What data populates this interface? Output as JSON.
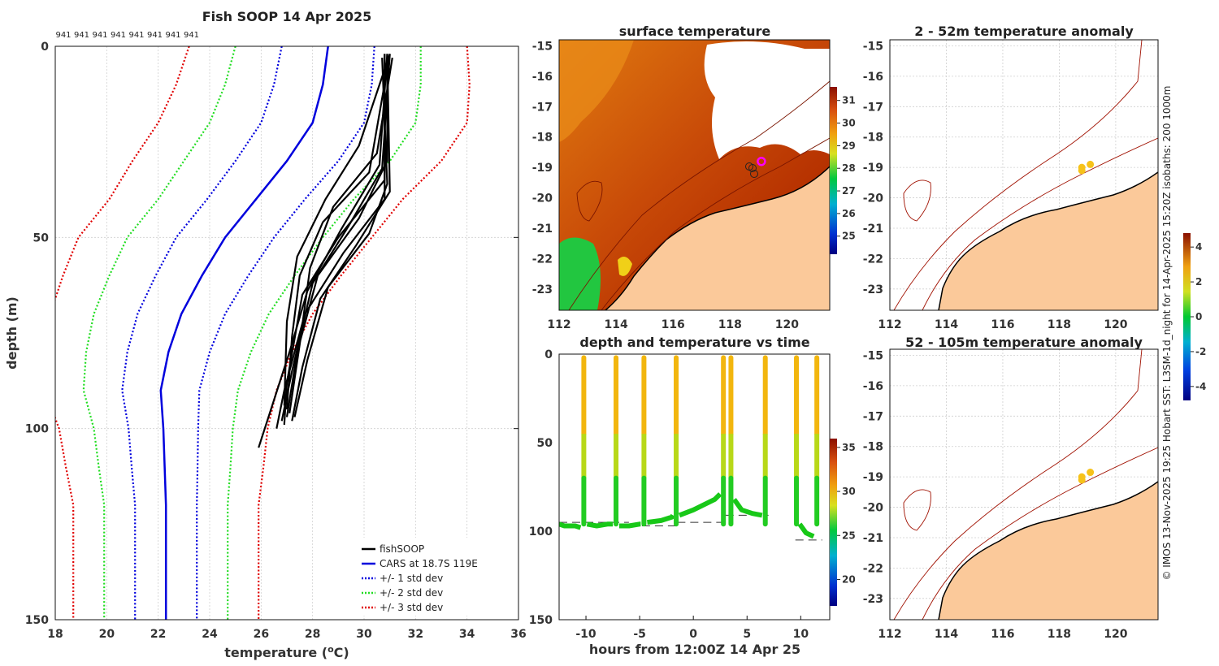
{
  "colors": {
    "red": "#e00000",
    "green": "#22dd22",
    "blue": "#0000dd",
    "black": "#000000",
    "land": "#fbc99a",
    "sst_hot": "#b82a00",
    "sst_mid": "#e8860e",
    "orange_pt": "#f6c21a",
    "magenta": "#ff00ff"
  },
  "side_credit": "© IMOS 13-Nov-2025 19:25 Hobart SST: L3SM-1d_night for 14-Apr-2025 15:20Z isobaths: 200  1000m",
  "chart_data": [
    {
      "id": "profile",
      "type": "line",
      "title": "Fish SOOP 14 Apr 2025",
      "xlabel": "temperature (",
      "xlabel_sup": "o",
      "xlabel_tail": "C)",
      "ylabel": "depth (m)",
      "xlim": [
        18,
        36
      ],
      "ylim": [
        0,
        150
      ],
      "xticks": [
        "18",
        "20",
        "22",
        "24",
        "26",
        "28",
        "30",
        "32",
        "34",
        "36"
      ],
      "yticks": [
        "0",
        "50",
        "100",
        "150"
      ],
      "top_labels": [
        "941",
        "941",
        "941",
        "941",
        "941",
        "941",
        "941",
        "941"
      ],
      "legend": [
        "fishSOOP",
        "CARS at 18.7S 119E",
        "+/- 1 std dev",
        "+/- 2 std dev",
        "+/- 3 std dev"
      ],
      "depths": [
        0,
        10,
        20,
        30,
        40,
        50,
        60,
        70,
        80,
        90,
        100,
        110,
        120,
        130,
        150
      ],
      "cars_mean": [
        28.6,
        28.4,
        28.0,
        27.0,
        25.8,
        24.6,
        23.7,
        22.9,
        22.4,
        22.1,
        22.2,
        22.25,
        22.3,
        22.3,
        22.3
      ],
      "std_dev": [
        1.8,
        1.9,
        2.0,
        2.0,
        1.9,
        1.9,
        1.8,
        1.7,
        1.6,
        1.5,
        1.35,
        1.28,
        1.2,
        1.2,
        1.2
      ],
      "profiles": [
        {
          "depths": [
            2,
            30,
            45,
            60,
            80,
            97
          ],
          "temps": [
            30.9,
            30.9,
            29.8,
            28.2,
            27.4,
            27.0
          ]
        },
        {
          "depths": [
            2,
            32,
            47,
            62,
            85,
            98
          ],
          "temps": [
            31.0,
            30.7,
            29.4,
            28.0,
            27.2,
            26.8
          ]
        },
        {
          "depths": [
            2,
            35,
            50,
            65,
            88,
            99
          ],
          "temps": [
            30.8,
            30.8,
            29.0,
            27.6,
            27.0,
            26.9
          ]
        },
        {
          "depths": [
            3,
            28,
            42,
            58,
            78,
            96
          ],
          "temps": [
            31.1,
            30.5,
            28.8,
            27.9,
            27.5,
            27.1
          ]
        },
        {
          "depths": [
            2,
            38,
            52,
            66,
            84,
            98
          ],
          "temps": [
            30.9,
            31.0,
            29.7,
            28.3,
            27.6,
            27.2
          ]
        },
        {
          "depths": [
            2,
            33,
            46,
            60,
            76,
            95
          ],
          "temps": [
            31.0,
            30.2,
            28.4,
            27.5,
            27.2,
            27.0
          ]
        },
        {
          "depths": [
            3,
            36,
            49,
            63,
            82,
            97
          ],
          "temps": [
            30.7,
            30.9,
            30.2,
            28.6,
            27.8,
            27.3
          ]
        },
        {
          "depths": [
            2,
            40,
            54,
            70,
            90,
            100
          ],
          "temps": [
            30.8,
            30.8,
            29.2,
            27.7,
            26.9,
            26.6
          ]
        },
        {
          "depths": [
            2,
            26,
            40,
            55,
            72,
            94
          ],
          "temps": [
            31.0,
            29.8,
            28.5,
            27.4,
            27.0,
            26.9
          ]
        },
        {
          "depths": [
            2,
            31,
            48,
            64,
            80,
            105
          ],
          "temps": [
            30.9,
            30.6,
            29.1,
            27.8,
            27.1,
            25.9
          ]
        }
      ]
    },
    {
      "id": "sst_map",
      "type": "heatmap",
      "title": "surface temperature",
      "xlim": [
        112,
        121.5
      ],
      "ylim": [
        -23.7,
        -14.8
      ],
      "xticks": [
        "112",
        "114",
        "116",
        "118",
        "120"
      ],
      "yticks": [
        "-15",
        "-16",
        "-17",
        "-18",
        "-19",
        "-20",
        "-21",
        "-22",
        "-23"
      ],
      "colorbar_ticks": [
        "31",
        "30",
        "29",
        "28",
        "27",
        "26",
        "25"
      ],
      "colorbar_range": [
        24.2,
        31.6
      ],
      "track_point": [
        119.1,
        -18.8
      ]
    },
    {
      "id": "depth_time",
      "type": "scatter",
      "title": "depth and temperature vs time",
      "xlabel": "hours from 12:00Z 14 Apr 25",
      "xlim": [
        -12.5,
        12.7
      ],
      "ylim": [
        0,
        150
      ],
      "xticks": [
        "-10",
        "-5",
        "0",
        "5",
        "10"
      ],
      "yticks": [
        "0",
        "50",
        "100",
        "150"
      ],
      "colorbar_ticks": [
        "35",
        "30",
        "25",
        "20"
      ],
      "colorbar_range": [
        17,
        36
      ],
      "casts": [
        -10.2,
        -7.2,
        -4.6,
        -1.6,
        2.8,
        3.5,
        6.7,
        9.6,
        11.5
      ],
      "segments": [
        {
          "t": [
            -12.5,
            -12,
            -11,
            -10.5
          ],
          "d": [
            96,
            97,
            97,
            98
          ]
        },
        {
          "t": [
            -9.9,
            -9,
            -8,
            -7.5
          ],
          "d": [
            96,
            97,
            96,
            96
          ]
        },
        {
          "t": [
            -6.9,
            -6,
            -5,
            -4.9
          ],
          "d": [
            97,
            97,
            96,
            96
          ]
        },
        {
          "t": [
            -4.3,
            -3,
            -2,
            -1.9
          ],
          "d": [
            95,
            94,
            92,
            91
          ]
        },
        {
          "t": [
            -1.3,
            0,
            1,
            2,
            2.5
          ],
          "d": [
            91,
            88,
            85,
            82,
            79
          ]
        },
        {
          "t": [
            3.8,
            4.5,
            5.5,
            6.4
          ],
          "d": [
            82,
            88,
            90,
            91
          ]
        },
        {
          "t": [
            9.9,
            10.5,
            11.2
          ],
          "d": [
            96,
            101,
            103
          ]
        }
      ],
      "bottom_lines": [
        {
          "t": [
            -12.5,
            -6
          ],
          "d": [
            95,
            95
          ]
        },
        {
          "t": [
            -6,
            -1.5
          ],
          "d": [
            97,
            97
          ]
        },
        {
          "t": [
            -1.5,
            3
          ],
          "d": [
            95,
            95
          ]
        },
        {
          "t": [
            3,
            7
          ],
          "d": [
            91,
            91
          ]
        },
        {
          "t": [
            9.5,
            12
          ],
          "d": [
            105,
            105
          ]
        }
      ]
    },
    {
      "id": "anom_a",
      "type": "heatmap",
      "title": "2 - 52m temperature anomaly",
      "xlim": [
        112,
        121.5
      ],
      "ylim": [
        -23.7,
        -14.8
      ],
      "xticks": [
        "112",
        "114",
        "116",
        "118",
        "120"
      ],
      "yticks": [
        "-15",
        "-16",
        "-17",
        "-18",
        "-19",
        "-20",
        "-21",
        "-22",
        "-23"
      ],
      "points": [
        [
          118.8,
          -19.0
        ],
        [
          118.8,
          -19.1
        ],
        [
          119.1,
          -18.9
        ]
      ]
    },
    {
      "id": "anom_b",
      "type": "heatmap",
      "title": "52 - 105m temperature anomaly",
      "xlim": [
        112,
        121.5
      ],
      "ylim": [
        -23.7,
        -14.8
      ],
      "xticks": [
        "112",
        "114",
        "116",
        "118",
        "120"
      ],
      "yticks": [
        "-15",
        "-16",
        "-17",
        "-18",
        "-19",
        "-20",
        "-21",
        "-22",
        "-23"
      ],
      "points": [
        [
          118.8,
          -19.0
        ],
        [
          118.8,
          -19.1
        ],
        [
          119.1,
          -18.85
        ]
      ],
      "colorbar_ticks": [
        "4",
        "2",
        "0",
        "-2",
        "-4"
      ],
      "colorbar_range": [
        -4.8,
        4.8
      ]
    }
  ]
}
